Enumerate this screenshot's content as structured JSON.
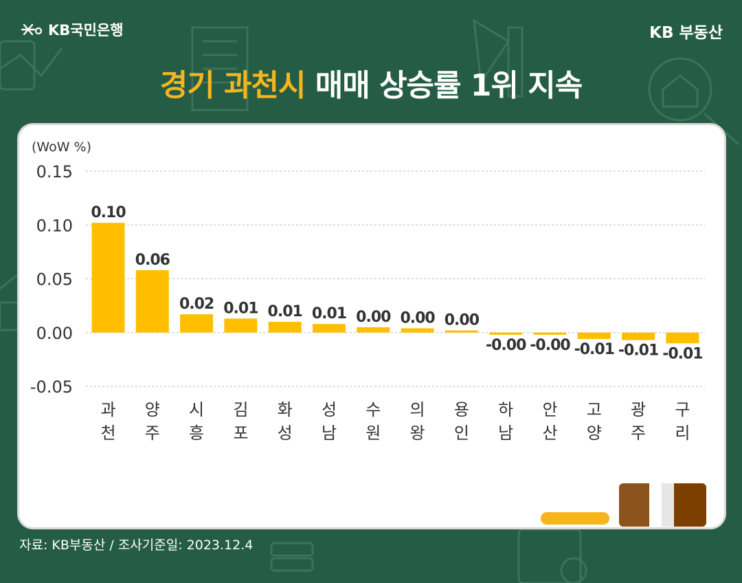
{
  "header": {
    "bank_logo": "KB국민은행",
    "brand": "KB 부동산"
  },
  "title": {
    "highlight": "경기 과천시",
    "rest": " 매매 상승률 1위 지속"
  },
  "source": "자료: KB부동산 / 조사기준일: 2023.12.4",
  "colors": {
    "background": "#245c45",
    "bar": "#ffbf00",
    "title_highlight": "#f7b51c"
  },
  "chart_data": {
    "type": "bar",
    "unit_label": "(WoW %)",
    "categories": [
      "과\n천",
      "양\n주",
      "시\n흥",
      "김\n포",
      "화\n성",
      "성\n남",
      "수\n원",
      "의\n왕",
      "용\n인",
      "하\n남",
      "안\n산",
      "고\n양",
      "광\n주",
      "구\n리"
    ],
    "values": [
      0.102,
      0.058,
      0.017,
      0.013,
      0.01,
      0.008,
      0.005,
      0.004,
      0.002,
      -0.002,
      -0.002,
      -0.006,
      -0.007,
      -0.01
    ],
    "data_labels": [
      "0.10",
      "0.06",
      "0.02",
      "0.01",
      "0.01",
      "0.01",
      "0.00",
      "0.00",
      "0.00",
      "-0.00",
      "-0.00",
      "-0.01",
      "-0.01",
      "-0.01"
    ],
    "yticks": [
      "0.15",
      "0.10",
      "0.05",
      "0.00",
      "-0.05"
    ],
    "ytick_values": [
      0.15,
      0.1,
      0.05,
      0.0,
      -0.05
    ],
    "ylim": [
      -0.05,
      0.15
    ],
    "grid": true
  }
}
